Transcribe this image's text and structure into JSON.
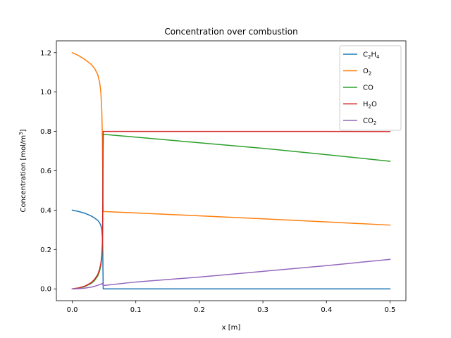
{
  "chart_data": {
    "type": "line",
    "title": "Concentration over combustion",
    "xlabel": "x [m]",
    "ylabel": "Concentration [mol/m³]",
    "xlim": [
      -0.025,
      0.525
    ],
    "ylim": [
      -0.06,
      1.26
    ],
    "xticks": [
      0.0,
      0.1,
      0.2,
      0.3,
      0.4,
      0.5
    ],
    "xtick_labels": [
      "0.0",
      "0.1",
      "0.2",
      "0.3",
      "0.4",
      "0.5"
    ],
    "yticks": [
      0.0,
      0.2,
      0.4,
      0.6,
      0.8,
      1.0,
      1.2
    ],
    "ytick_labels": [
      "0.0",
      "0.2",
      "0.4",
      "0.6",
      "0.8",
      "1.0",
      "1.2"
    ],
    "grid": false,
    "legend_position": "upper-right",
    "series": [
      {
        "name": "C2H4",
        "legend": {
          "parts": [
            [
              "C",
              "n"
            ],
            [
              "2",
              "s"
            ],
            [
              "H",
              "n"
            ],
            [
              "4",
              "s"
            ]
          ]
        },
        "color": "#1f77b4",
        "x": [
          0.0,
          0.01,
          0.02,
          0.03,
          0.035,
          0.04,
          0.043,
          0.045,
          0.0465,
          0.0475,
          0.048,
          0.0483,
          0.0487,
          0.05,
          0.1,
          0.2,
          0.3,
          0.4,
          0.5
        ],
        "y": [
          0.4,
          0.393,
          0.384,
          0.37,
          0.36,
          0.348,
          0.336,
          0.322,
          0.3,
          0.26,
          0.2,
          0.1,
          0.0,
          0.0,
          0.0,
          0.0,
          0.0,
          0.0,
          0.0
        ]
      },
      {
        "name": "O2",
        "legend": {
          "parts": [
            [
              "O",
              "n"
            ],
            [
              "2",
              "s"
            ]
          ]
        },
        "color": "#ff7f0e",
        "x": [
          0.0,
          0.01,
          0.02,
          0.03,
          0.035,
          0.04,
          0.043,
          0.045,
          0.0465,
          0.0475,
          0.048,
          0.0483,
          0.0487,
          0.1,
          0.2,
          0.3,
          0.4,
          0.5
        ],
        "y": [
          1.2,
          1.185,
          1.165,
          1.14,
          1.12,
          1.09,
          1.05,
          1.0,
          0.9,
          0.75,
          0.6,
          0.45,
          0.393,
          0.386,
          0.371,
          0.356,
          0.34,
          0.324
        ]
      },
      {
        "name": "CO",
        "legend": {
          "parts": [
            [
              "CO",
              "n"
            ]
          ]
        },
        "color": "#2ca02c",
        "x": [
          0.0,
          0.01,
          0.02,
          0.03,
          0.035,
          0.04,
          0.043,
          0.045,
          0.0465,
          0.0475,
          0.048,
          0.0483,
          0.0487,
          0.1,
          0.2,
          0.3,
          0.4,
          0.5
        ],
        "y": [
          0.0,
          0.004,
          0.012,
          0.028,
          0.042,
          0.065,
          0.09,
          0.12,
          0.16,
          0.22,
          0.35,
          0.6,
          0.785,
          0.771,
          0.742,
          0.714,
          0.682,
          0.648
        ]
      },
      {
        "name": "H2O",
        "legend": {
          "parts": [
            [
              "H",
              "n"
            ],
            [
              "2",
              "s"
            ],
            [
              "O",
              "n"
            ]
          ]
        },
        "color": "#d62728",
        "x": [
          0.0,
          0.01,
          0.02,
          0.03,
          0.035,
          0.04,
          0.043,
          0.045,
          0.0465,
          0.0475,
          0.048,
          0.0483,
          0.0487,
          0.1,
          0.2,
          0.3,
          0.4,
          0.5
        ],
        "y": [
          0.0,
          0.005,
          0.014,
          0.032,
          0.048,
          0.072,
          0.1,
          0.13,
          0.17,
          0.24,
          0.4,
          0.65,
          0.8,
          0.8,
          0.8,
          0.8,
          0.8,
          0.799
        ]
      },
      {
        "name": "CO2",
        "legend": {
          "parts": [
            [
              "CO",
              "n"
            ],
            [
              "2",
              "s"
            ]
          ]
        },
        "color": "#9467bd",
        "x": [
          0.0,
          0.01,
          0.02,
          0.03,
          0.035,
          0.04,
          0.045,
          0.0475,
          0.0487,
          0.1,
          0.2,
          0.3,
          0.4,
          0.5
        ],
        "y": [
          0.0,
          0.001,
          0.004,
          0.009,
          0.013,
          0.018,
          0.024,
          0.028,
          0.017,
          0.035,
          0.06,
          0.089,
          0.118,
          0.15
        ]
      }
    ]
  }
}
